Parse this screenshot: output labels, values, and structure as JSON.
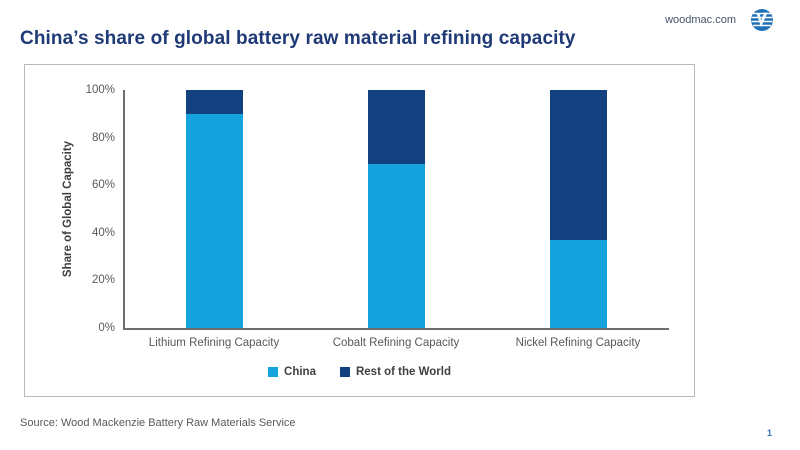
{
  "header": {
    "site": "woodmac.com",
    "logo": "woodmac-logo"
  },
  "title": "China’s share of global battery raw material refining capacity",
  "chart_data": {
    "type": "bar",
    "stacked": true,
    "title": "China’s share of global battery raw material refining capacity",
    "categories": [
      "Lithium Refining Capacity",
      "Cobalt Refining Capacity",
      "Nickel Refining Capacity"
    ],
    "series": [
      {
        "name": "China",
        "color": "#14a3dd",
        "values": [
          90,
          69,
          37
        ]
      },
      {
        "name": "Rest of the World",
        "color": "#13407e",
        "values": [
          10,
          31,
          63
        ]
      }
    ],
    "xlabel": "",
    "ylabel": "Share of Global Capacity",
    "ylim": [
      0,
      100
    ],
    "yticks": [
      0,
      20,
      40,
      60,
      80,
      100
    ],
    "ytick_suffix": "%",
    "grid": false,
    "legend_position": "bottom"
  },
  "footer": {
    "source": "Source: Wood Mackenzie Battery Raw Materials Service",
    "page_number": "1"
  }
}
